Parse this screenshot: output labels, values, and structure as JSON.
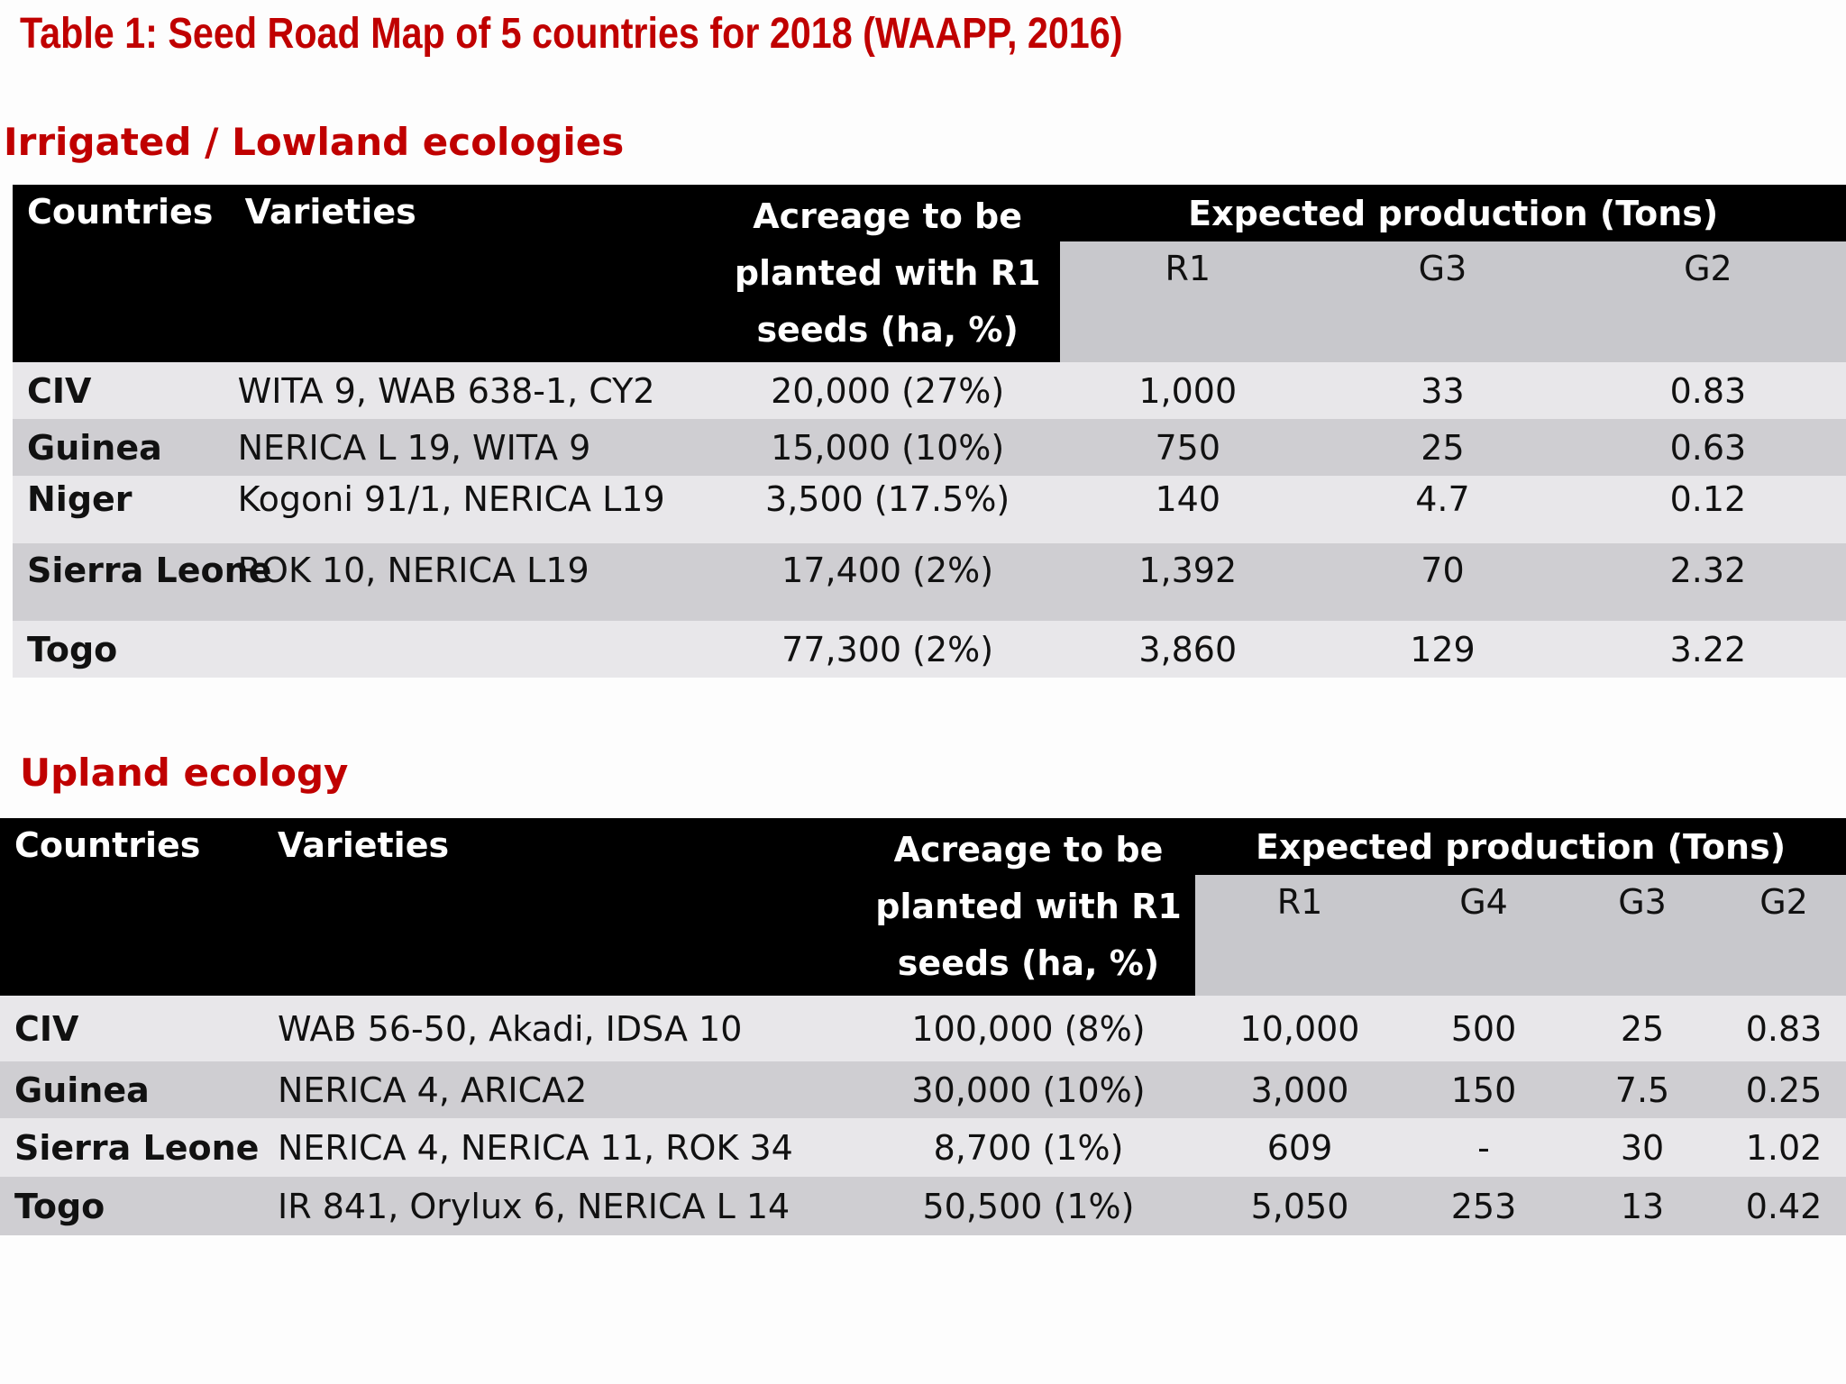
{
  "title": "Table 1: Seed Road Map of 5 countries for 2018 (WAAPP, 2016)",
  "sections": [
    {
      "title": "Irrigated / Lowland ecologies",
      "header": {
        "countries": "Countries",
        "varieties": "Varieties",
        "acreage_lines": [
          "Acreage to be",
          "planted with R1",
          "seeds (ha, %)"
        ],
        "expected": "Expected production (Tons)",
        "sub_columns": [
          "R1",
          "G3",
          "G2"
        ]
      },
      "rows": [
        {
          "country": "CIV",
          "varieties": "WITA 9, WAB 638-1, CY2",
          "acreage": "20,000 (27%)",
          "values": [
            "1,000",
            "33",
            "0.83"
          ]
        },
        {
          "country": "Guinea",
          "varieties": "NERICA L 19, WITA 9",
          "acreage": "15,000 (10%)",
          "values": [
            "750",
            "25",
            "0.63"
          ]
        },
        {
          "country": "Niger",
          "varieties": "Kogoni 91/1, NERICA L19",
          "acreage": "3,500 (17.5%)",
          "values": [
            "140",
            "4.7",
            "0.12"
          ]
        },
        {
          "country": "Sierra Leone",
          "varieties": "ROK 10, NERICA L19",
          "acreage": "17,400 (2%)",
          "values": [
            "1,392",
            "70",
            "2.32"
          ]
        },
        {
          "country": "Togo",
          "varieties": "",
          "acreage": "77,300 (2%)",
          "values": [
            "3,860",
            "129",
            "3.22"
          ]
        }
      ]
    },
    {
      "title": "Upland ecology",
      "header": {
        "countries": "Countries",
        "varieties": "Varieties",
        "acreage_lines": [
          "Acreage to be",
          "planted with R1",
          "seeds (ha, %)"
        ],
        "expected": "Expected production (Tons)",
        "sub_columns": [
          "R1",
          "G4",
          "G3",
          "G2"
        ]
      },
      "rows": [
        {
          "country": "CIV",
          "varieties": "WAB 56-50, Akadi, IDSA 10",
          "acreage": "100,000 (8%)",
          "values": [
            "10,000",
            "500",
            "25",
            "0.83"
          ]
        },
        {
          "country": "Guinea",
          "varieties": "NERICA 4, ARICA2",
          "acreage": "30,000 (10%)",
          "values": [
            "3,000",
            "150",
            "7.5",
            "0.25"
          ]
        },
        {
          "country": "Sierra Leone",
          "varieties": "NERICA 4, NERICA 11, ROK 34",
          "acreage": "8,700 (1%)",
          "values": [
            "609",
            "-",
            "30",
            "1.02"
          ]
        },
        {
          "country": "Togo",
          "varieties": "IR 841, Orylux 6, NERICA L 14",
          "acreage": "50,500 (1%)",
          "values": [
            "5,050",
            "253",
            "13",
            "0.42"
          ]
        }
      ]
    }
  ]
}
